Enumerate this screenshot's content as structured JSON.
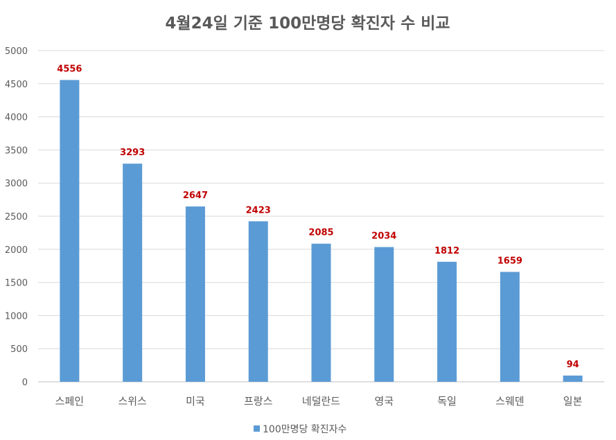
{
  "chart_data": {
    "type": "bar",
    "title": "4월24일 기준 100만명당 확진자 수 비교",
    "categories": [
      "스페인",
      "스위스",
      "미국",
      "프랑스",
      "네덜란드",
      "영국",
      "독일",
      "스웨덴",
      "일본"
    ],
    "series": [
      {
        "name": "100만명당 확진자수",
        "values": [
          4556,
          3293,
          2647,
          2423,
          2085,
          2034,
          1812,
          1659,
          94
        ],
        "color": "#5B9BD5"
      }
    ],
    "ylim": [
      0,
      5000
    ],
    "yticks": [
      0,
      500,
      1000,
      1500,
      2000,
      2500,
      3000,
      3500,
      4000,
      4500,
      5000
    ],
    "xlabel": "",
    "ylabel": "",
    "grid": true,
    "legend": "bottom",
    "data_label_color": "#C00000"
  }
}
